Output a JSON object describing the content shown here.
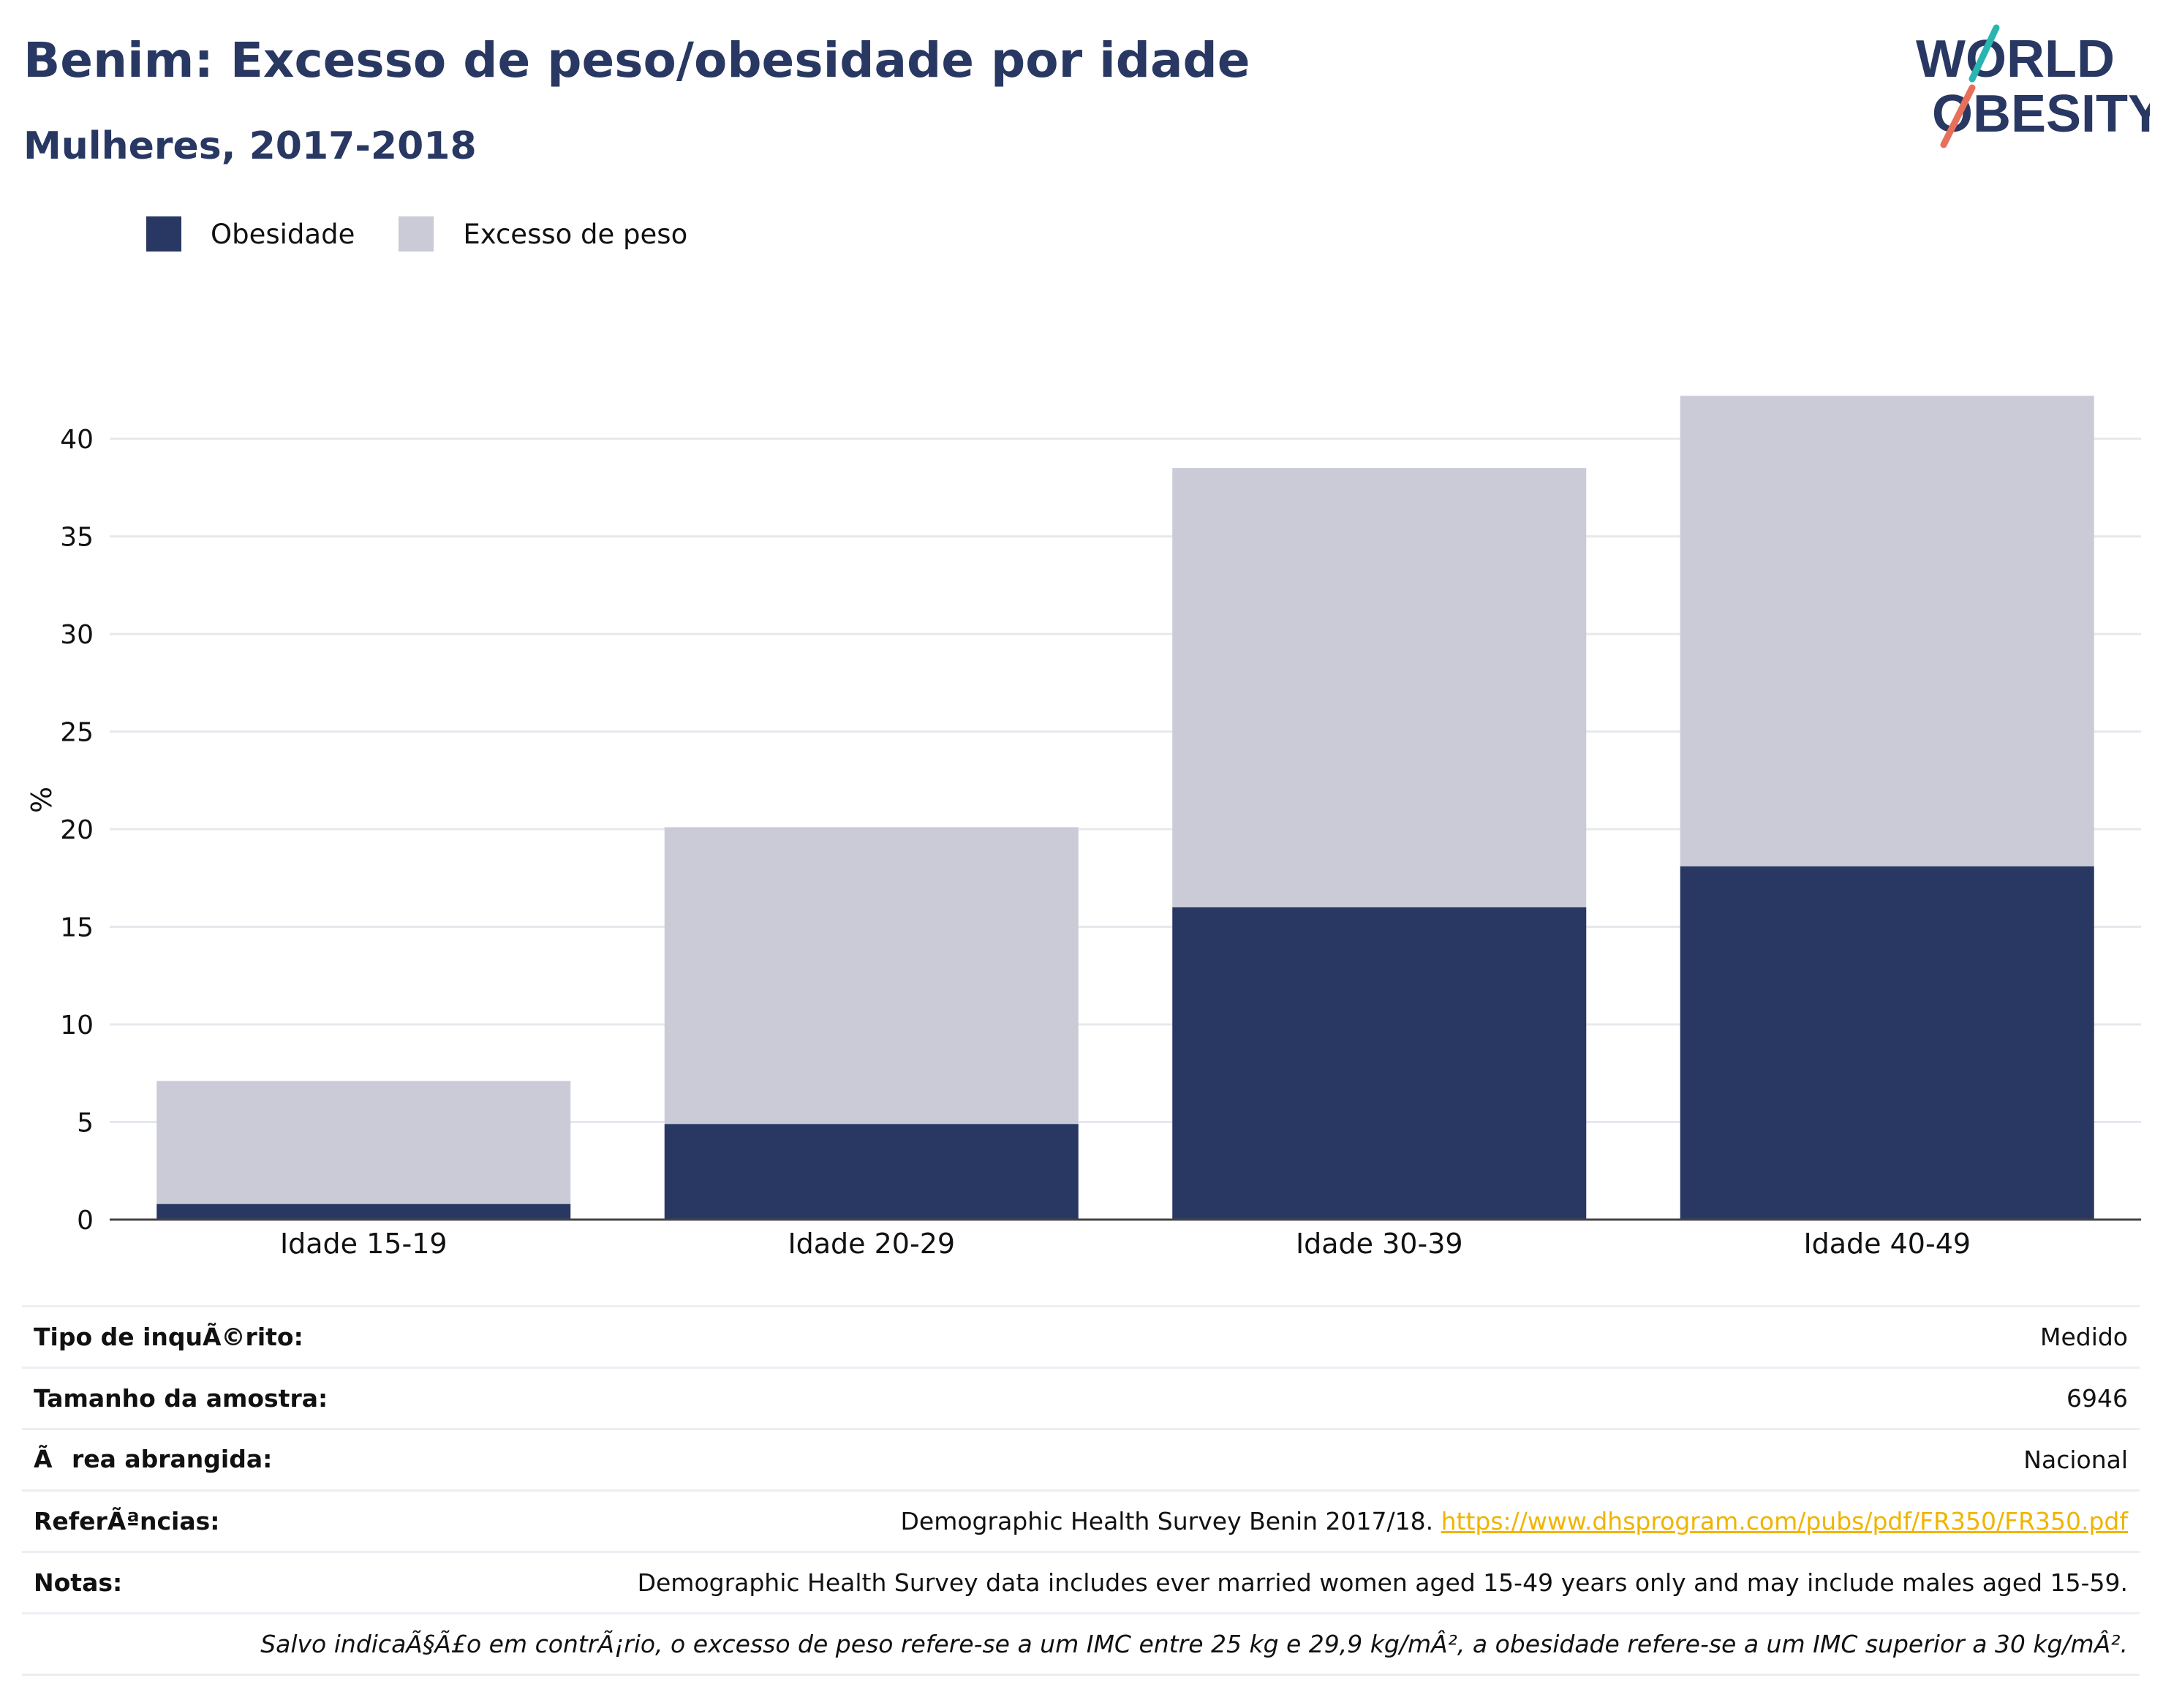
{
  "header": {
    "title": "Benim: Excesso de peso/obesidade por idade",
    "subtitle": "Mulheres, 2017-2018"
  },
  "logo": {
    "line1": "WORLD",
    "line2": "OBESITY"
  },
  "legend": [
    {
      "label": "Obesidade",
      "color": "#283862"
    },
    {
      "label": "Excesso de peso",
      "color": "#cacbd6"
    }
  ],
  "chart_data": {
    "type": "bar",
    "stacked": true,
    "categories": [
      "Idade 15-19",
      "Idade 20-29",
      "Idade 30-39",
      "Idade 40-49"
    ],
    "series": [
      {
        "name": "Obesidade",
        "values": [
          0.8,
          4.9,
          16.0,
          18.1
        ],
        "color": "#283862"
      },
      {
        "name": "Excesso de peso",
        "values": [
          6.3,
          15.2,
          22.5,
          24.1
        ],
        "color": "#cacbd6"
      }
    ],
    "ylabel": "%",
    "yticks": [
      0,
      5,
      10,
      15,
      20,
      25,
      30,
      35,
      40
    ],
    "ylim": [
      0,
      43
    ],
    "grid": true,
    "legend_position": "top-left"
  },
  "info": {
    "survey_type": {
      "label": "Tipo de inquÃ©rito:",
      "value": "Medido"
    },
    "sample_size": {
      "label": "Tamanho da amostra:",
      "value": "6946"
    },
    "area": {
      "label": "Ãrea abrangida:",
      "value": "Nacional"
    },
    "references": {
      "label": "ReferÃªncias:",
      "text": "Demographic Health Survey Benin 2017/18.",
      "link": "https://www.dhsprogram.com/pubs/pdf/FR350/FR350.pdf"
    },
    "notes": {
      "label": "Notas:",
      "value": "Demographic Health Survey data includes ever married women aged 15-49 years only and may include males aged 15-59."
    },
    "footnote": "Salvo indicaÃ§Ã£o em contrÃ¡rio, o excesso de peso refere-se a um IMC entre 25 kg e 29,9 kg/mÂ², a obesidade refere-se a um IMC superior a 30 kg/mÂ²."
  }
}
